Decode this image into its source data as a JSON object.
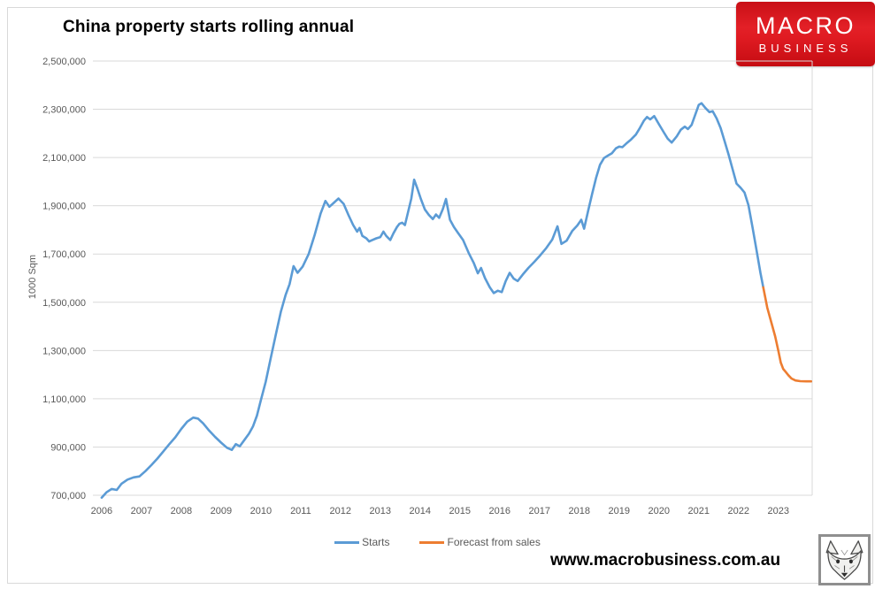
{
  "header": {
    "title": "China property starts rolling annual"
  },
  "logo": {
    "line1": "MACRO",
    "line2": "BUSINESS",
    "bg_color": "#d1121a",
    "text_color": "#ffffff"
  },
  "footer": {
    "website": "www.macrobusiness.com.au",
    "fox_icon": "fox-sketch-logo"
  },
  "chart_data": {
    "type": "line",
    "title": "China property starts rolling annual",
    "xlabel": "",
    "ylabel": "1000 Sqm",
    "ylim": [
      700000,
      2500000
    ],
    "xlim": [
      2005.78,
      2023.85
    ],
    "grid": true,
    "gridline_color": "#d9d9d9",
    "tick_label_color": "#595959",
    "legend_position": "bottom",
    "y_ticks": [
      2500000,
      2300000,
      2100000,
      1900000,
      1700000,
      1500000,
      1300000,
      1100000,
      900000,
      700000
    ],
    "x_ticks": [
      2006,
      2007,
      2008,
      2009,
      2010,
      2011,
      2012,
      2013,
      2014,
      2015,
      2016,
      2017,
      2018,
      2019,
      2020,
      2021,
      2022,
      2023
    ],
    "series": [
      {
        "name": "Starts",
        "color": "#5B9BD5",
        "points": [
          [
            2006.0,
            690000
          ],
          [
            2006.12,
            712000
          ],
          [
            2006.25,
            726000
          ],
          [
            2006.38,
            722000
          ],
          [
            2006.5,
            748000
          ],
          [
            2006.65,
            765000
          ],
          [
            2006.8,
            774000
          ],
          [
            2006.95,
            778000
          ],
          [
            2007.1,
            800000
          ],
          [
            2007.25,
            825000
          ],
          [
            2007.4,
            852000
          ],
          [
            2007.55,
            882000
          ],
          [
            2007.7,
            912000
          ],
          [
            2007.85,
            940000
          ],
          [
            2008.0,
            975000
          ],
          [
            2008.15,
            1005000
          ],
          [
            2008.3,
            1022000
          ],
          [
            2008.42,
            1018000
          ],
          [
            2008.55,
            998000
          ],
          [
            2008.7,
            968000
          ],
          [
            2008.85,
            942000
          ],
          [
            2009.0,
            918000
          ],
          [
            2009.15,
            897000
          ],
          [
            2009.27,
            888000
          ],
          [
            2009.37,
            912000
          ],
          [
            2009.47,
            903000
          ],
          [
            2009.58,
            928000
          ],
          [
            2009.7,
            955000
          ],
          [
            2009.8,
            985000
          ],
          [
            2009.9,
            1030000
          ],
          [
            2010.0,
            1095000
          ],
          [
            2010.12,
            1170000
          ],
          [
            2010.25,
            1270000
          ],
          [
            2010.38,
            1370000
          ],
          [
            2010.5,
            1460000
          ],
          [
            2010.62,
            1530000
          ],
          [
            2010.72,
            1575000
          ],
          [
            2010.82,
            1650000
          ],
          [
            2010.92,
            1622000
          ],
          [
            2011.05,
            1648000
          ],
          [
            2011.2,
            1700000
          ],
          [
            2011.35,
            1778000
          ],
          [
            2011.5,
            1868000
          ],
          [
            2011.62,
            1920000
          ],
          [
            2011.72,
            1896000
          ],
          [
            2011.82,
            1910000
          ],
          [
            2011.95,
            1930000
          ],
          [
            2012.08,
            1908000
          ],
          [
            2012.2,
            1862000
          ],
          [
            2012.32,
            1820000
          ],
          [
            2012.42,
            1793000
          ],
          [
            2012.48,
            1808000
          ],
          [
            2012.55,
            1775000
          ],
          [
            2012.65,
            1765000
          ],
          [
            2012.72,
            1752000
          ],
          [
            2012.8,
            1758000
          ],
          [
            2012.9,
            1765000
          ],
          [
            2013.0,
            1770000
          ],
          [
            2013.08,
            1793000
          ],
          [
            2013.15,
            1775000
          ],
          [
            2013.25,
            1758000
          ],
          [
            2013.33,
            1786000
          ],
          [
            2013.42,
            1812000
          ],
          [
            2013.48,
            1825000
          ],
          [
            2013.55,
            1830000
          ],
          [
            2013.62,
            1820000
          ],
          [
            2013.7,
            1875000
          ],
          [
            2013.78,
            1930000
          ],
          [
            2013.85,
            2008000
          ],
          [
            2013.93,
            1972000
          ],
          [
            2014.02,
            1928000
          ],
          [
            2014.12,
            1885000
          ],
          [
            2014.22,
            1862000
          ],
          [
            2014.32,
            1845000
          ],
          [
            2014.4,
            1864000
          ],
          [
            2014.48,
            1850000
          ],
          [
            2014.57,
            1886000
          ],
          [
            2014.65,
            1928000
          ],
          [
            2014.75,
            1842000
          ],
          [
            2014.85,
            1812000
          ],
          [
            2014.95,
            1788000
          ],
          [
            2015.08,
            1758000
          ],
          [
            2015.22,
            1705000
          ],
          [
            2015.35,
            1662000
          ],
          [
            2015.45,
            1620000
          ],
          [
            2015.53,
            1642000
          ],
          [
            2015.63,
            1600000
          ],
          [
            2015.75,
            1562000
          ],
          [
            2015.85,
            1538000
          ],
          [
            2015.95,
            1548000
          ],
          [
            2016.05,
            1542000
          ],
          [
            2016.15,
            1588000
          ],
          [
            2016.25,
            1622000
          ],
          [
            2016.35,
            1598000
          ],
          [
            2016.45,
            1588000
          ],
          [
            2016.58,
            1615000
          ],
          [
            2016.72,
            1642000
          ],
          [
            2016.87,
            1668000
          ],
          [
            2017.02,
            1695000
          ],
          [
            2017.17,
            1725000
          ],
          [
            2017.32,
            1760000
          ],
          [
            2017.45,
            1815000
          ],
          [
            2017.55,
            1742000
          ],
          [
            2017.68,
            1755000
          ],
          [
            2017.82,
            1795000
          ],
          [
            2017.95,
            1818000
          ],
          [
            2018.05,
            1842000
          ],
          [
            2018.12,
            1805000
          ],
          [
            2018.22,
            1878000
          ],
          [
            2018.32,
            1948000
          ],
          [
            2018.42,
            2015000
          ],
          [
            2018.52,
            2070000
          ],
          [
            2018.62,
            2098000
          ],
          [
            2018.72,
            2108000
          ],
          [
            2018.82,
            2118000
          ],
          [
            2018.92,
            2138000
          ],
          [
            2019.0,
            2145000
          ],
          [
            2019.08,
            2143000
          ],
          [
            2019.18,
            2158000
          ],
          [
            2019.3,
            2175000
          ],
          [
            2019.42,
            2195000
          ],
          [
            2019.52,
            2222000
          ],
          [
            2019.62,
            2252000
          ],
          [
            2019.7,
            2268000
          ],
          [
            2019.78,
            2258000
          ],
          [
            2019.88,
            2272000
          ],
          [
            2020.0,
            2238000
          ],
          [
            2020.12,
            2205000
          ],
          [
            2020.22,
            2178000
          ],
          [
            2020.32,
            2162000
          ],
          [
            2020.45,
            2188000
          ],
          [
            2020.55,
            2215000
          ],
          [
            2020.65,
            2228000
          ],
          [
            2020.73,
            2218000
          ],
          [
            2020.82,
            2235000
          ],
          [
            2020.9,
            2272000
          ],
          [
            2021.0,
            2318000
          ],
          [
            2021.07,
            2325000
          ],
          [
            2021.17,
            2305000
          ],
          [
            2021.27,
            2288000
          ],
          [
            2021.35,
            2292000
          ],
          [
            2021.45,
            2262000
          ],
          [
            2021.55,
            2222000
          ],
          [
            2021.65,
            2168000
          ],
          [
            2021.75,
            2112000
          ],
          [
            2021.85,
            2052000
          ],
          [
            2021.95,
            1992000
          ],
          [
            2022.05,
            1975000
          ],
          [
            2022.15,
            1955000
          ],
          [
            2022.25,
            1902000
          ],
          [
            2022.35,
            1812000
          ],
          [
            2022.45,
            1718000
          ],
          [
            2022.55,
            1622000
          ],
          [
            2022.62,
            1562000
          ]
        ]
      },
      {
        "name": "Forecast from sales",
        "color": "#ED7D31",
        "points": [
          [
            2022.62,
            1562000
          ],
          [
            2022.72,
            1478000
          ],
          [
            2022.82,
            1418000
          ],
          [
            2022.92,
            1358000
          ],
          [
            2023.0,
            1298000
          ],
          [
            2023.06,
            1250000
          ],
          [
            2023.12,
            1224000
          ],
          [
            2023.18,
            1212000
          ],
          [
            2023.25,
            1198000
          ],
          [
            2023.33,
            1184000
          ],
          [
            2023.43,
            1176000
          ],
          [
            2023.55,
            1173000
          ],
          [
            2023.7,
            1172000
          ],
          [
            2023.82,
            1172000
          ]
        ]
      }
    ]
  }
}
